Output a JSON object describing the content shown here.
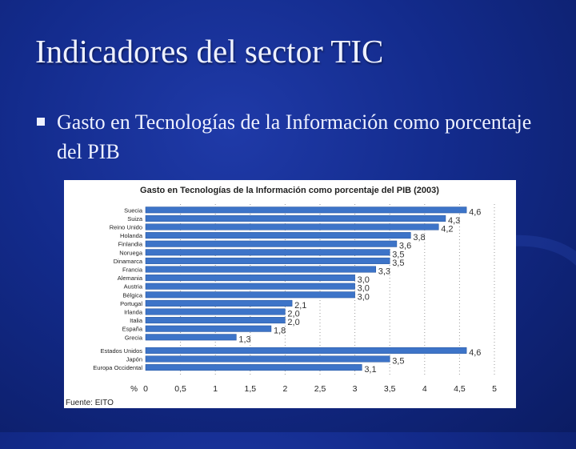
{
  "slide": {
    "title": "Indicadores del sector TIC",
    "bullet": "Gasto en Tecnologías de la Información como porcentaje del PIB"
  },
  "chart_data": {
    "type": "bar",
    "orientation": "horizontal",
    "title": "Gasto en Tecnologías de la Información como porcentaje del PIB (2003)",
    "source": "Fuente: EITO",
    "xlabel": "%",
    "xlim": [
      0,
      5
    ],
    "xticks": [
      "0",
      "0,5",
      "1",
      "1,5",
      "2",
      "2,5",
      "3",
      "3,5",
      "4",
      "4,5",
      "5"
    ],
    "grid": "vertical dotted",
    "bar_color": "#3d74c8",
    "groups": [
      {
        "categories": [
          "Suecia",
          "Suiza",
          "Reino Unido",
          "Holanda",
          "Finlandia",
          "Noruega",
          "Dinamarca",
          "Francia",
          "Alemania",
          "Austria",
          "Bélgica",
          "Portugal",
          "Irlanda",
          "Italia",
          "España",
          "Grecia"
        ],
        "values": [
          4.6,
          4.3,
          4.2,
          3.8,
          3.6,
          3.5,
          3.5,
          3.3,
          3.0,
          3.0,
          3.0,
          2.1,
          2.0,
          2.0,
          1.8,
          1.3
        ],
        "labels": [
          "4,6",
          "4,3",
          "4,2",
          "3,8",
          "3,6",
          "3,5",
          "3,5",
          "3,3",
          "3,0",
          "3,0",
          "3,0",
          "2,1",
          "2,0",
          "2,0",
          "1,8",
          "1,3"
        ]
      },
      {
        "categories": [
          "Estados Unidos",
          "Japón",
          "Europa Occidental"
        ],
        "values": [
          4.6,
          3.5,
          3.1
        ],
        "labels": [
          "4,6",
          "3,5",
          "3,1"
        ]
      }
    ]
  }
}
